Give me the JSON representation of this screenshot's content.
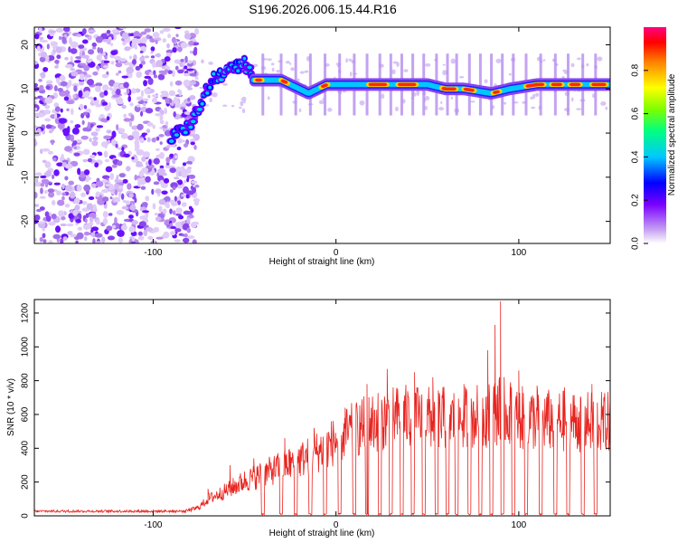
{
  "figure_title": "S196.2026.006.15.44.R16",
  "chart_data": [
    {
      "type": "heatmap",
      "title": "S196.2026.006.15.44.R16",
      "xlabel": "Height of straight line (km)",
      "ylabel": "Frequency (Hz)",
      "xlim": [
        -165,
        150
      ],
      "ylim": [
        -25,
        24
      ],
      "xticks": [
        -100,
        0,
        100
      ],
      "yticks": [
        -20,
        -10,
        0,
        10,
        20
      ],
      "colorbar": {
        "label": "Normalized spectral amplitude",
        "range": [
          0,
          1
        ],
        "ticks": [
          0.0,
          0.2,
          0.4,
          0.6,
          0.8
        ],
        "tick_labels": [
          "0.0",
          "0.2",
          "0.4",
          "0.6",
          "0.8"
        ],
        "colors": [
          "#ffffff",
          "#c9a6f2",
          "#7a00ff",
          "#0000ff",
          "#00c8ff",
          "#00ff80",
          "#7cff00",
          "#ffff00",
          "#ff8000",
          "#ff0000",
          "#ff0080"
        ]
      },
      "features": {
        "noise_region_x": [
          -165,
          -80
        ],
        "rising_branch": [
          [
            -90,
            -1
          ],
          [
            -80,
            2
          ],
          [
            -75,
            6
          ],
          [
            -68,
            12
          ],
          [
            -60,
            14
          ],
          [
            -50,
            16
          ],
          [
            -45,
            12
          ]
        ],
        "dominant_line": [
          [
            -45,
            12
          ],
          [
            -30,
            12
          ],
          [
            -20,
            10
          ],
          [
            -15,
            9
          ],
          [
            -5,
            11
          ],
          [
            10,
            11
          ],
          [
            30,
            11
          ],
          [
            50,
            11
          ],
          [
            60,
            10
          ],
          [
            70,
            10
          ],
          [
            85,
            9
          ],
          [
            95,
            10
          ],
          [
            110,
            11
          ],
          [
            150,
            11
          ]
        ]
      }
    },
    {
      "type": "line",
      "xlabel": "Height of straight line (km)",
      "ylabel": "SNR (10 * v/v)",
      "xlim": [
        -165,
        150
      ],
      "ylim": [
        0,
        1280
      ],
      "xticks": [
        -100,
        0,
        100
      ],
      "yticks": [
        0,
        200,
        400,
        600,
        800,
        1000,
        1200
      ],
      "color": "#e8231e",
      "series": [
        {
          "name": "SNR",
          "envelope_x": [
            -165,
            -100,
            -82,
            -75,
            -70,
            -60,
            -50,
            -40,
            -30,
            -20,
            -10,
            0,
            10,
            20,
            30,
            40,
            50,
            60,
            70,
            80,
            90,
            100,
            110,
            120,
            130,
            140,
            150
          ],
          "envelope_y": [
            30,
            30,
            35,
            60,
            120,
            180,
            250,
            300,
            350,
            400,
            460,
            540,
            620,
            670,
            700,
            710,
            700,
            700,
            700,
            720,
            760,
            700,
            690,
            680,
            680,
            670,
            670
          ],
          "peaks": [
            [
              -70,
              160
            ],
            [
              -58,
              300
            ],
            [
              -45,
              340
            ],
            [
              -28,
              460
            ],
            [
              -12,
              520
            ],
            [
              5,
              640
            ],
            [
              17,
              780
            ],
            [
              28,
              870
            ],
            [
              43,
              850
            ],
            [
              53,
              820
            ],
            [
              70,
              780
            ],
            [
              83,
              980
            ],
            [
              87,
              1130
            ],
            [
              90,
              1270
            ],
            [
              96,
              760
            ],
            [
              100,
              860
            ],
            [
              102,
              680
            ],
            [
              110,
              770
            ],
            [
              125,
              760
            ],
            [
              140,
              780
            ],
            [
              150,
              770
            ]
          ],
          "dropouts_x": [
            -40,
            -30,
            -22,
            -14,
            -6,
            2,
            10,
            17,
            24,
            30,
            36,
            42,
            48,
            55,
            61,
            66,
            73,
            79,
            85,
            91,
            97,
            104,
            112,
            120,
            127,
            135,
            142
          ]
        }
      ]
    }
  ]
}
